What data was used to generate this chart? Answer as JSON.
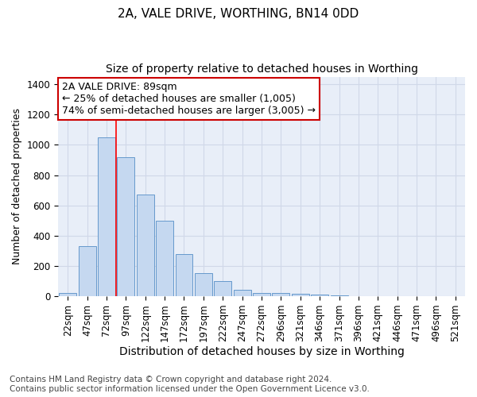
{
  "title": "2A, VALE DRIVE, WORTHING, BN14 0DD",
  "subtitle": "Size of property relative to detached houses in Worthing",
  "xlabel": "Distribution of detached houses by size in Worthing",
  "ylabel": "Number of detached properties",
  "categories": [
    "22sqm",
    "47sqm",
    "72sqm",
    "97sqm",
    "122sqm",
    "147sqm",
    "172sqm",
    "197sqm",
    "222sqm",
    "247sqm",
    "272sqm",
    "296sqm",
    "321sqm",
    "346sqm",
    "371sqm",
    "396sqm",
    "421sqm",
    "446sqm",
    "471sqm",
    "496sqm",
    "521sqm"
  ],
  "values": [
    20,
    330,
    1050,
    920,
    670,
    500,
    280,
    150,
    100,
    40,
    20,
    20,
    15,
    10,
    5,
    0,
    0,
    0,
    0,
    0,
    0
  ],
  "bar_color": "#c5d8f0",
  "bar_edge_color": "#6699cc",
  "bar_edge_width": 0.7,
  "red_line_x": 3.0,
  "annotation_line1": "2A VALE DRIVE: 89sqm",
  "annotation_line2": "← 25% of detached houses are smaller (1,005)",
  "annotation_line3": "74% of semi-detached houses are larger (3,005) →",
  "annotation_box_color": "#ffffff",
  "annotation_box_edge_color": "#cc0000",
  "ylim": [
    0,
    1450
  ],
  "yticks": [
    0,
    200,
    400,
    600,
    800,
    1000,
    1200,
    1400
  ],
  "grid_color": "#d0d8e8",
  "background_color": "#e8eef8",
  "footnote": "Contains HM Land Registry data © Crown copyright and database right 2024.\nContains public sector information licensed under the Open Government Licence v3.0.",
  "title_fontsize": 11,
  "subtitle_fontsize": 10,
  "xlabel_fontsize": 10,
  "ylabel_fontsize": 9,
  "tick_fontsize": 8.5,
  "annotation_fontsize": 9,
  "footnote_fontsize": 7.5
}
